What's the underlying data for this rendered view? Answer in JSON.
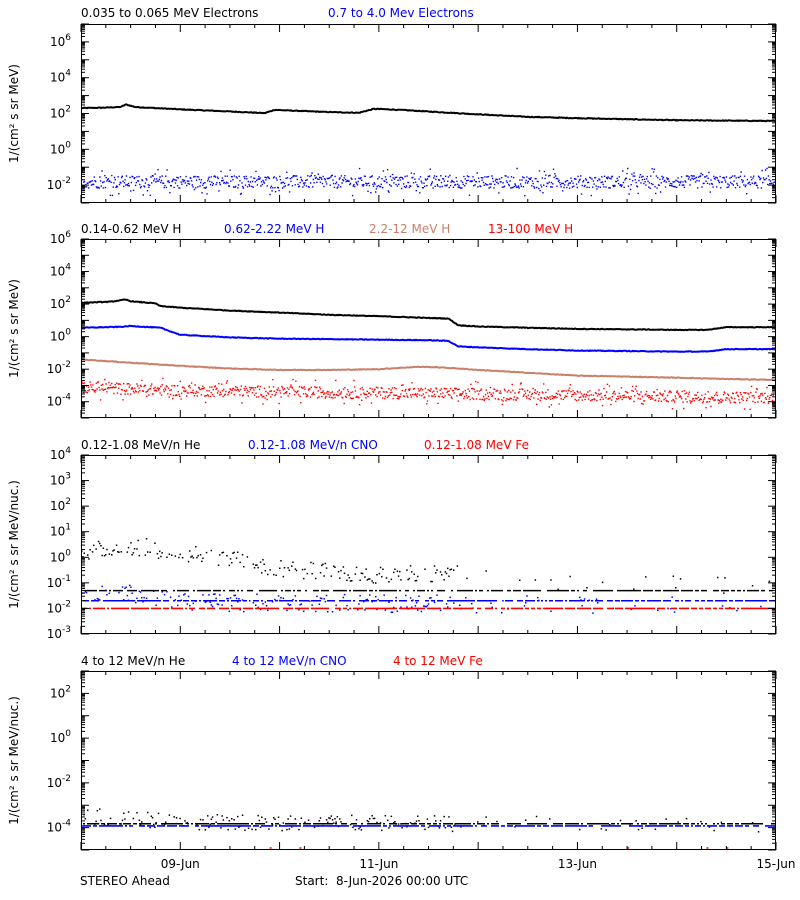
{
  "footer": {
    "left": "STEREO Ahead",
    "center": "Start:  8-Jun-2026 00:00 UTC"
  },
  "x_axis": {
    "range_days": [
      0,
      7
    ],
    "ticks": [
      {
        "day": 1,
        "label": "09-Jun"
      },
      {
        "day": 3,
        "label": "11-Jun"
      },
      {
        "day": 5,
        "label": "13-Jun"
      },
      {
        "day": 7,
        "label": "15-Jun"
      }
    ]
  },
  "colors": {
    "black": "#000000",
    "blue": "#0000ff",
    "tan": "#c8806a",
    "red": "#ff0000"
  },
  "chart_data": [
    {
      "type": "scatter",
      "ylabel": "1/(cm² s sr MeV)",
      "yscale": "log",
      "ylim": [
        0.001,
        10000000
      ],
      "yticks": [
        {
          "v": 0.01,
          "base": "10",
          "exp": "-2"
        },
        {
          "v": 1,
          "base": "10",
          "exp": "0"
        },
        {
          "v": 100,
          "base": "10",
          "exp": "2"
        },
        {
          "v": 10000,
          "base": "10",
          "exp": "4"
        },
        {
          "v": 1000000,
          "base": "10",
          "exp": "6"
        }
      ],
      "series": [
        {
          "name": "0.035 to 0.065 MeV Electrons",
          "color": "#000000",
          "style": "line",
          "x": [
            0,
            0.2,
            0.4,
            0.45,
            0.55,
            1.0,
            1.5,
            1.85,
            1.95,
            2.05,
            2.5,
            2.8,
            2.95,
            3.05,
            3.3,
            3.6,
            4.0,
            4.5,
            5.0,
            5.5,
            6.0,
            6.5,
            7.0
          ],
          "y": [
            200,
            210,
            230,
            320,
            230,
            170,
            130,
            105,
            160,
            150,
            120,
            110,
            180,
            175,
            150,
            120,
            90,
            65,
            55,
            48,
            42,
            40,
            38
          ]
        },
        {
          "name": "0.7 to 4.0 Mev Electrons",
          "color": "#0000ff",
          "style": "noisy",
          "x": [
            0,
            7
          ],
          "y": [
            0.015,
            0.015
          ],
          "spread": 0.35
        }
      ]
    },
    {
      "type": "scatter",
      "ylabel": "1/(cm² s sr MeV)",
      "yscale": "log",
      "ylim": [
        1e-05,
        1000000
      ],
      "yticks": [
        {
          "v": 0.0001,
          "base": "10",
          "exp": "-4"
        },
        {
          "v": 0.01,
          "base": "10",
          "exp": "-2"
        },
        {
          "v": 1,
          "base": "10",
          "exp": "0"
        },
        {
          "v": 100,
          "base": "10",
          "exp": "2"
        },
        {
          "v": 10000,
          "base": "10",
          "exp": "4"
        },
        {
          "v": 1000000,
          "base": "10",
          "exp": "6"
        }
      ],
      "series": [
        {
          "name": "0.14-0.62 MeV H",
          "color": "#000000",
          "style": "line",
          "x": [
            0,
            0.3,
            0.45,
            0.5,
            0.75,
            0.8,
            1.0,
            1.5,
            2.0,
            2.5,
            3.0,
            3.5,
            3.7,
            3.8,
            4.0,
            4.5,
            5.0,
            5.5,
            6.0,
            6.3,
            6.5,
            7.0
          ],
          "y": [
            120,
            140,
            190,
            150,
            110,
            75,
            60,
            40,
            30,
            22,
            18,
            14,
            13,
            5,
            4.2,
            3.5,
            3.0,
            2.8,
            2.6,
            2.6,
            3.8,
            3.8
          ]
        },
        {
          "name": "0.62-2.22 MeV H",
          "color": "#0000ff",
          "style": "line",
          "x": [
            0,
            0.4,
            0.5,
            0.8,
            1.0,
            1.5,
            2.0,
            2.5,
            3.0,
            3.5,
            3.7,
            3.8,
            4.0,
            4.5,
            5.0,
            5.5,
            6.0,
            6.3,
            6.5,
            7.0
          ],
          "y": [
            3.5,
            4.0,
            4.5,
            3.5,
            1.3,
            0.9,
            0.75,
            0.7,
            0.65,
            0.6,
            0.55,
            0.25,
            0.22,
            0.17,
            0.14,
            0.13,
            0.12,
            0.12,
            0.17,
            0.17
          ]
        },
        {
          "name": "2.2-12 MeV H",
          "color": "#c8806a",
          "style": "line",
          "x": [
            0,
            0.5,
            1.0,
            1.5,
            2.0,
            2.5,
            3.0,
            3.2,
            3.4,
            3.6,
            3.8,
            4.0,
            4.5,
            5.0,
            5.5,
            6.0,
            6.5,
            7.0
          ],
          "y": [
            0.04,
            0.025,
            0.016,
            0.011,
            0.009,
            0.009,
            0.01,
            0.012,
            0.014,
            0.013,
            0.011,
            0.009,
            0.006,
            0.004,
            0.0035,
            0.003,
            0.0025,
            0.0022
          ]
        },
        {
          "name": "13-100 MeV H",
          "color": "#ff0000",
          "style": "noisy",
          "x": [
            0,
            0.5,
            1.0,
            2.0,
            3.0,
            4.0,
            5.0,
            6.0,
            7.0
          ],
          "y": [
            0.0008,
            0.0006,
            0.0005,
            0.0004,
            0.00035,
            0.0003,
            0.00025,
            0.0002,
            0.00018
          ],
          "spread": 0.35
        }
      ]
    },
    {
      "type": "scatter",
      "ylabel": "1/(cm² s sr MeV/nuc.)",
      "yscale": "log",
      "ylim": [
        0.001,
        10000
      ],
      "yticks": [
        {
          "v": 0.001,
          "base": "10",
          "exp": "-3"
        },
        {
          "v": 0.01,
          "base": "10",
          "exp": "-2"
        },
        {
          "v": 0.1,
          "base": "10",
          "exp": "-1"
        },
        {
          "v": 1,
          "base": "10",
          "exp": "0"
        },
        {
          "v": 10,
          "base": "10",
          "exp": "1"
        },
        {
          "v": 100,
          "base": "10",
          "exp": "2"
        },
        {
          "v": 1000,
          "base": "10",
          "exp": "3"
        },
        {
          "v": 10000,
          "base": "10",
          "exp": "4"
        }
      ],
      "series": [
        {
          "name": "0.12-1.08 MeV/n He",
          "color": "#000000",
          "style": "sparse",
          "x": [
            0,
            0.3,
            0.6,
            0.9,
            1.2,
            1.5,
            1.8,
            2.1,
            2.5,
            3.0,
            3.5,
            4.0,
            4.5,
            5.0,
            5.5,
            6.0,
            6.5,
            7.0
          ],
          "y": [
            2.0,
            2.5,
            3.0,
            2.0,
            1.5,
            1.0,
            0.6,
            0.4,
            0.3,
            0.25,
            0.3,
            0.2,
            0.1,
            0.1,
            0.1,
            0.1,
            0.1,
            0.1
          ],
          "floor": 0.05
        },
        {
          "name": "0.12-1.08 MeV/n CNO",
          "color": "#0000ff",
          "style": "sparse",
          "x": [
            0,
            0.6,
            1.0,
            7.0
          ],
          "y": [
            0.05,
            0.04,
            0.02,
            0.015
          ],
          "floor": 0.02
        },
        {
          "name": "0.12-1.08 MeV Fe",
          "color": "#ff0000",
          "style": "floorline",
          "x": [
            0,
            7
          ],
          "y": [
            0.01,
            0.01
          ],
          "floor": 0.01
        }
      ]
    },
    {
      "type": "scatter",
      "ylabel": "1/(cm² s sr MeV/nuc.)",
      "yscale": "log",
      "ylim": [
        1e-05,
        1000
      ],
      "yticks": [
        {
          "v": 0.0001,
          "base": "10",
          "exp": "-4"
        },
        {
          "v": 0.01,
          "base": "10",
          "exp": "-2"
        },
        {
          "v": 1,
          "base": "10",
          "exp": "0"
        },
        {
          "v": 100,
          "base": "10",
          "exp": "2"
        }
      ],
      "series": [
        {
          "name": "4 to 12 MeV/n He",
          "color": "#000000",
          "style": "sparse",
          "x": [
            0,
            0.5,
            1.0,
            7.0
          ],
          "y": [
            0.0004,
            0.0003,
            0.0002,
            0.00015
          ],
          "floor": 0.00015
        },
        {
          "name": "4 to 12 MeV/n CNO",
          "color": "#0000ff",
          "style": "floorline",
          "x": [
            0,
            7
          ],
          "y": [
            0.00012,
            0.00012
          ],
          "floor": 0.00012
        },
        {
          "name": "4 to 12 MeV Fe",
          "color": "#ff0000",
          "style": "rare",
          "x": [
            0,
            7
          ],
          "y": [
            1e-05,
            1e-05
          ]
        }
      ]
    }
  ]
}
